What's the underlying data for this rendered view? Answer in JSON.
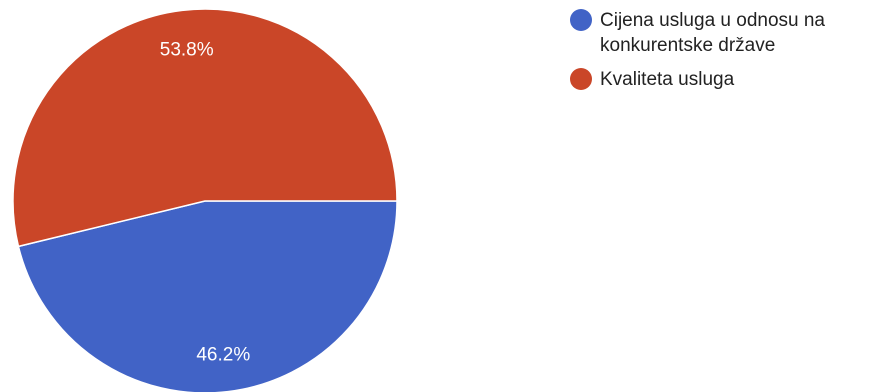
{
  "chart_data": {
    "type": "pie",
    "slices": [
      {
        "label": "Cijena usluga u odnosu na konkurentske države",
        "value": 46.2,
        "display": "46.2%",
        "color": "#4163c6"
      },
      {
        "label": "Kvaliteta usluga",
        "value": 53.8,
        "display": "53.8%",
        "color": "#ca4628"
      }
    ],
    "legend": {
      "position": "top-right",
      "items": [
        {
          "label": "Cijena usluga u odnosu na konkurentske države",
          "color": "#4163c6"
        },
        {
          "label": "Kvaliteta usluga",
          "color": "#ca4628"
        }
      ]
    }
  }
}
